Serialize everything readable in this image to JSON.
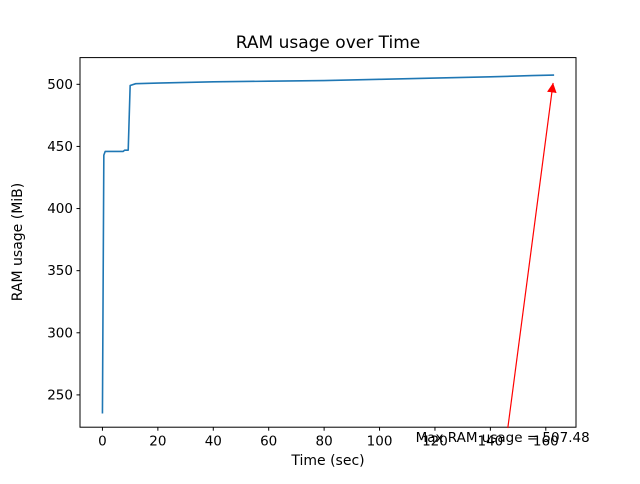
{
  "chart_data": {
    "type": "line",
    "title": "RAM usage over Time",
    "xlabel": "Time (sec)",
    "ylabel": "RAM usage (MiB)",
    "x": [
      0,
      0.5,
      1,
      7.5,
      8,
      9.3,
      10,
      12,
      20,
      40,
      60,
      80,
      100,
      120,
      140,
      155,
      163
    ],
    "y": [
      235,
      443,
      446,
      446,
      447,
      447,
      499,
      500.5,
      501,
      502,
      502.5,
      503,
      504,
      505,
      506,
      507,
      507.48
    ],
    "xlim": [
      -8.1,
      170.9
    ],
    "ylim": [
      224,
      521.5
    ],
    "xticks": [
      0,
      20,
      40,
      60,
      80,
      100,
      120,
      140,
      160
    ],
    "yticks": [
      250,
      300,
      350,
      400,
      450,
      500
    ],
    "line_color": "#1f77b4",
    "grid": false,
    "legend": null,
    "annotation": {
      "text": "Max RAM usage = 507.48",
      "color": "#ff0000",
      "xy": [
        163,
        507.48
      ],
      "xytext": [
        113,
        212
      ]
    }
  }
}
